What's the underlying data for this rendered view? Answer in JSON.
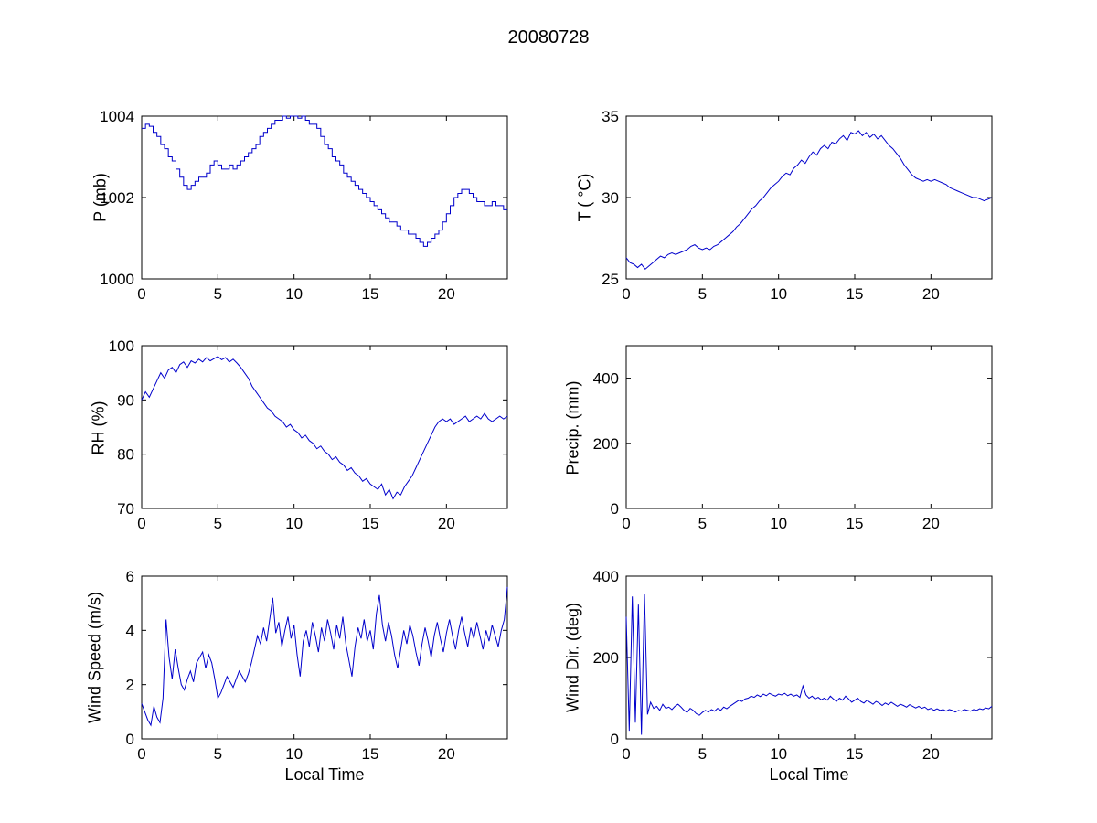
{
  "figure": {
    "title": "20080728",
    "line_color": "#0000cc",
    "axis_color": "#000000",
    "background": "#ffffff"
  },
  "chart_data": [
    {
      "type": "line",
      "name": "pressure",
      "ylabel": "P (mb)",
      "xlabel": "",
      "ylim": [
        1000,
        1004
      ],
      "yticks": [
        1000,
        1002,
        1004
      ],
      "xlim": [
        0,
        24
      ],
      "xticks": [
        0,
        5,
        10,
        15,
        20
      ],
      "step": true,
      "x_start": 0,
      "x_step": 0.25,
      "values": [
        1003.7,
        1003.8,
        1003.75,
        1003.6,
        1003.5,
        1003.3,
        1003.2,
        1003.0,
        1002.9,
        1002.7,
        1002.5,
        1002.3,
        1002.2,
        1002.3,
        1002.4,
        1002.5,
        1002.5,
        1002.6,
        1002.8,
        1002.9,
        1002.8,
        1002.7,
        1002.7,
        1002.8,
        1002.7,
        1002.8,
        1002.9,
        1003.0,
        1003.1,
        1003.2,
        1003.3,
        1003.5,
        1003.6,
        1003.7,
        1003.8,
        1003.9,
        1003.9,
        1004.0,
        1003.95,
        1004.0,
        1004.0,
        1003.95,
        1004.0,
        1003.9,
        1003.8,
        1003.8,
        1003.7,
        1003.5,
        1003.3,
        1003.2,
        1003.0,
        1002.9,
        1002.8,
        1002.6,
        1002.5,
        1002.4,
        1002.3,
        1002.2,
        1002.1,
        1002.0,
        1001.9,
        1001.8,
        1001.7,
        1001.6,
        1001.5,
        1001.4,
        1001.4,
        1001.3,
        1001.2,
        1001.2,
        1001.1,
        1001.1,
        1001.0,
        1000.9,
        1000.8,
        1000.9,
        1001.0,
        1001.1,
        1001.2,
        1001.4,
        1001.6,
        1001.8,
        1002.0,
        1002.1,
        1002.2,
        1002.2,
        1002.1,
        1002.0,
        1001.9,
        1001.9,
        1001.8,
        1001.8,
        1001.9,
        1001.8,
        1001.8,
        1001.7,
        1001.7
      ]
    },
    {
      "type": "line",
      "name": "temperature",
      "ylabel": "T ( °C)",
      "xlabel": "",
      "ylim": [
        25,
        35
      ],
      "yticks": [
        25,
        30,
        35
      ],
      "xlim": [
        0,
        24
      ],
      "xticks": [
        0,
        5,
        10,
        15,
        20
      ],
      "step": false,
      "x_start": 0,
      "x_step": 0.25,
      "values": [
        26.3,
        26.0,
        25.9,
        25.7,
        25.9,
        25.6,
        25.8,
        26.0,
        26.2,
        26.4,
        26.3,
        26.5,
        26.6,
        26.5,
        26.6,
        26.7,
        26.8,
        27.0,
        27.1,
        26.9,
        26.8,
        26.9,
        26.8,
        27.0,
        27.1,
        27.3,
        27.5,
        27.7,
        27.9,
        28.2,
        28.4,
        28.7,
        29.0,
        29.3,
        29.5,
        29.8,
        30.0,
        30.3,
        30.6,
        30.8,
        31.0,
        31.3,
        31.5,
        31.4,
        31.8,
        32.0,
        32.3,
        32.1,
        32.5,
        32.8,
        32.6,
        33.0,
        33.2,
        33.0,
        33.4,
        33.3,
        33.6,
        33.8,
        33.5,
        34.0,
        33.9,
        34.1,
        33.8,
        34.0,
        33.7,
        33.9,
        33.6,
        33.8,
        33.5,
        33.2,
        33.0,
        32.7,
        32.4,
        32.0,
        31.7,
        31.4,
        31.2,
        31.1,
        31.0,
        31.1,
        31.0,
        31.1,
        31.0,
        30.9,
        30.8,
        30.6,
        30.5,
        30.4,
        30.3,
        30.2,
        30.1,
        30.0,
        30.0,
        29.9,
        29.8,
        29.9,
        30.0
      ]
    },
    {
      "type": "line",
      "name": "relative-humidity",
      "ylabel": "RH (%)",
      "xlabel": "",
      "ylim": [
        70,
        100
      ],
      "yticks": [
        70,
        80,
        90,
        100
      ],
      "xlim": [
        0,
        24
      ],
      "xticks": [
        0,
        5,
        10,
        15,
        20
      ],
      "step": false,
      "x_start": 0,
      "x_step": 0.25,
      "values": [
        90.0,
        91.5,
        90.5,
        92.0,
        93.5,
        95.0,
        94.0,
        95.5,
        96.0,
        95.0,
        96.5,
        97.0,
        96.0,
        97.2,
        96.8,
        97.5,
        97.0,
        97.8,
        97.2,
        97.6,
        98.0,
        97.4,
        97.8,
        97.0,
        97.5,
        96.8,
        96.0,
        95.0,
        94.0,
        92.5,
        91.5,
        90.5,
        89.5,
        88.5,
        88.0,
        87.0,
        86.5,
        86.0,
        85.0,
        85.5,
        84.5,
        84.0,
        83.0,
        83.5,
        82.5,
        82.0,
        81.0,
        81.5,
        80.5,
        80.0,
        79.0,
        79.5,
        78.5,
        78.0,
        77.0,
        77.5,
        76.5,
        76.0,
        75.0,
        75.5,
        74.5,
        74.0,
        73.5,
        74.5,
        72.5,
        73.5,
        71.8,
        73.0,
        72.5,
        74.0,
        75.0,
        76.0,
        77.5,
        79.0,
        80.5,
        82.0,
        83.5,
        85.0,
        86.0,
        86.5,
        86.0,
        86.5,
        85.5,
        86.0,
        86.5,
        87.0,
        86.0,
        86.5,
        87.0,
        86.5,
        87.5,
        86.5,
        86.0,
        86.5,
        87.0,
        86.5,
        87.0
      ]
    },
    {
      "type": "line",
      "name": "precipitation",
      "ylabel": "Precip. (mm)",
      "xlabel": "",
      "ylim": [
        0,
        500
      ],
      "yticks": [
        0,
        200,
        400
      ],
      "xlim": [
        0,
        24
      ],
      "xticks": [
        0,
        5,
        10,
        15,
        20
      ],
      "step": false,
      "x_start": 0,
      "x_step": 0.25,
      "values": []
    },
    {
      "type": "line",
      "name": "wind-speed",
      "ylabel": "Wind Speed (m/s)",
      "xlabel": "Local Time",
      "ylim": [
        0,
        6
      ],
      "yticks": [
        0,
        2,
        4,
        6
      ],
      "xlim": [
        0,
        24
      ],
      "xticks": [
        0,
        5,
        10,
        15,
        20
      ],
      "step": false,
      "x_start": 0,
      "x_step": 0.2,
      "values": [
        1.3,
        1.0,
        0.7,
        0.5,
        1.2,
        0.8,
        0.6,
        1.5,
        4.4,
        3.0,
        2.2,
        3.3,
        2.6,
        2.0,
        1.8,
        2.2,
        2.5,
        2.1,
        2.8,
        3.0,
        3.2,
        2.6,
        3.1,
        2.8,
        2.2,
        1.5,
        1.7,
        2.0,
        2.3,
        2.1,
        1.9,
        2.2,
        2.5,
        2.3,
        2.1,
        2.4,
        2.8,
        3.3,
        3.8,
        3.5,
        4.1,
        3.6,
        4.4,
        5.2,
        3.9,
        4.3,
        3.4,
        4.0,
        4.5,
        3.7,
        4.2,
        3.1,
        2.3,
        3.6,
        4.0,
        3.4,
        4.3,
        3.8,
        3.2,
        4.1,
        3.6,
        4.4,
        3.9,
        3.3,
        4.2,
        3.7,
        4.5,
        3.5,
        2.9,
        2.3,
        3.4,
        4.1,
        3.7,
        4.4,
        3.6,
        4.0,
        3.3,
        4.6,
        5.3,
        4.2,
        3.6,
        4.3,
        3.8,
        3.1,
        2.6,
        3.3,
        4.0,
        3.5,
        4.2,
        3.8,
        3.2,
        2.7,
        3.5,
        4.1,
        3.6,
        3.0,
        3.8,
        4.3,
        3.7,
        3.2,
        3.9,
        4.4,
        3.8,
        3.3,
        4.0,
        4.5,
        3.9,
        3.4,
        4.1,
        3.7,
        4.3,
        3.8,
        3.3,
        4.0,
        3.6,
        4.2,
        3.8,
        3.4,
        4.0,
        4.4,
        5.6
      ]
    },
    {
      "type": "line",
      "name": "wind-direction",
      "ylabel": "Wind Dir. (deg)",
      "xlabel": "Local Time",
      "ylim": [
        0,
        400
      ],
      "yticks": [
        0,
        200,
        400
      ],
      "xlim": [
        0,
        24
      ],
      "xticks": [
        0,
        5,
        10,
        15,
        20
      ],
      "step": false,
      "x_start": 0,
      "x_step": 0.2,
      "values": [
        300,
        20,
        350,
        40,
        330,
        10,
        355,
        60,
        90,
        75,
        80,
        70,
        85,
        75,
        78,
        72,
        80,
        85,
        78,
        70,
        65,
        75,
        70,
        62,
        58,
        65,
        70,
        66,
        72,
        68,
        75,
        70,
        78,
        74,
        80,
        85,
        90,
        95,
        92,
        98,
        100,
        105,
        102,
        108,
        104,
        110,
        106,
        112,
        108,
        105,
        110,
        108,
        112,
        106,
        110,
        105,
        108,
        102,
        130,
        108,
        100,
        105,
        98,
        102,
        96,
        100,
        95,
        105,
        98,
        92,
        100,
        95,
        105,
        98,
        90,
        95,
        100,
        92,
        88,
        95,
        90,
        85,
        92,
        88,
        82,
        88,
        84,
        90,
        85,
        80,
        85,
        82,
        78,
        84,
        80,
        76,
        80,
        75,
        78,
        72,
        75,
        70,
        74,
        70,
        72,
        68,
        72,
        70,
        66,
        70,
        68,
        72,
        70,
        68,
        72,
        70,
        74,
        72,
        76,
        74,
        80
      ]
    }
  ]
}
